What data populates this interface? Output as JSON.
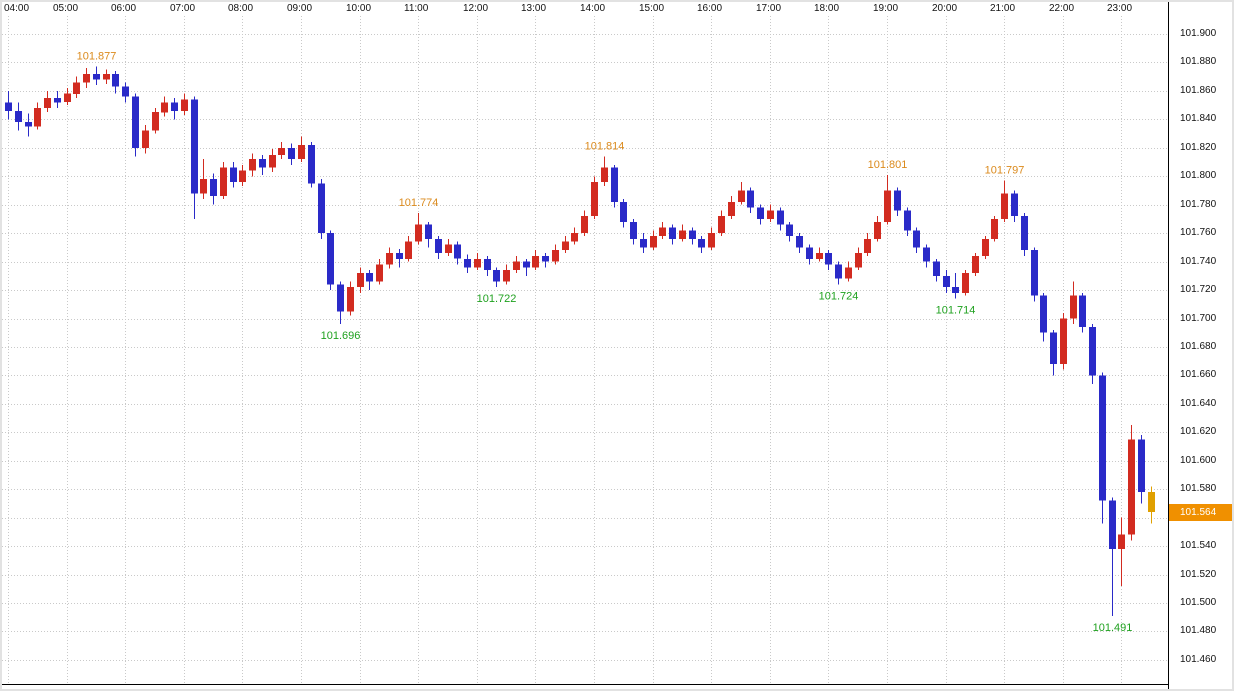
{
  "axis": {
    "time_labels": [
      "04:00",
      "05:00",
      "06:00",
      "07:00",
      "08:00",
      "09:00",
      "10:00",
      "11:00",
      "12:00",
      "13:00",
      "14:00",
      "15:00",
      "16:00",
      "17:00",
      "18:00",
      "19:00",
      "20:00",
      "21:00",
      "22:00",
      "23:00"
    ],
    "price_labels": [
      "101.900",
      "101.880",
      "101.860",
      "101.840",
      "101.820",
      "101.800",
      "101.780",
      "101.760",
      "101.740",
      "101.720",
      "101.700",
      "101.680",
      "101.660",
      "101.640",
      "101.620",
      "101.600",
      "101.580",
      "101.560",
      "101.540",
      "101.520",
      "101.500",
      "101.480",
      "101.460"
    ]
  },
  "current_price": {
    "value": "101.564"
  },
  "colors": {
    "up_candle": "#d22b20",
    "down_candle": "#2a2ac8",
    "current_candle": "#e0a000",
    "grid": "#c9c9c9",
    "high_label": "#db8a1c",
    "low_label": "#1fa11f",
    "current_badge_bg": "#f09000",
    "axis_text": "#111111",
    "frame_line": "#000000",
    "background": "#ffffff"
  },
  "chart_data": {
    "type": "candlestick",
    "interval_minutes": 10,
    "x_axis": {
      "start": "04:00",
      "end": "23:30",
      "tick_labels": [
        "04:00",
        "05:00",
        "06:00",
        "07:00",
        "08:00",
        "09:00",
        "10:00",
        "11:00",
        "12:00",
        "13:00",
        "14:00",
        "15:00",
        "16:00",
        "17:00",
        "18:00",
        "19:00",
        "20:00",
        "21:00",
        "22:00",
        "23:00"
      ]
    },
    "y_axis": {
      "min": 101.46,
      "max": 101.9,
      "step": 0.02,
      "grid": true
    },
    "annotations": [
      {
        "text": "101.877",
        "kind": "high",
        "time": "05:30"
      },
      {
        "text": "101.696",
        "kind": "low",
        "time": "09:40"
      },
      {
        "text": "101.774",
        "kind": "high",
        "time": "11:00"
      },
      {
        "text": "101.722",
        "kind": "low",
        "time": "12:20"
      },
      {
        "text": "101.814",
        "kind": "high",
        "time": "14:10"
      },
      {
        "text": "101.724",
        "kind": "low",
        "time": "18:10"
      },
      {
        "text": "101.801",
        "kind": "high",
        "time": "19:00"
      },
      {
        "text": "101.714",
        "kind": "low",
        "time": "20:10"
      },
      {
        "text": "101.797",
        "kind": "high",
        "time": "21:00"
      },
      {
        "text": "101.491",
        "kind": "low",
        "time": "22:50"
      }
    ],
    "candles": [
      [
        "04:00",
        101.852,
        101.86,
        101.84,
        101.846
      ],
      [
        "04:10",
        101.846,
        101.852,
        101.832,
        101.838
      ],
      [
        "04:20",
        101.838,
        101.844,
        101.828,
        101.835
      ],
      [
        "04:30",
        101.835,
        101.852,
        101.833,
        101.848
      ],
      [
        "04:40",
        101.848,
        101.86,
        101.845,
        101.855
      ],
      [
        "04:50",
        101.855,
        101.86,
        101.848,
        101.852
      ],
      [
        "05:00",
        101.852,
        101.862,
        101.85,
        101.858
      ],
      [
        "05:10",
        101.858,
        101.87,
        101.855,
        101.866
      ],
      [
        "05:20",
        101.866,
        101.876,
        101.862,
        101.872
      ],
      [
        "05:30",
        101.872,
        101.877,
        101.864,
        101.868
      ],
      [
        "05:40",
        101.868,
        101.875,
        101.865,
        101.872
      ],
      [
        "05:50",
        101.872,
        101.874,
        101.858,
        101.863
      ],
      [
        "06:00",
        101.863,
        101.866,
        101.852,
        101.856
      ],
      [
        "06:10",
        101.856,
        101.858,
        101.814,
        101.82
      ],
      [
        "06:20",
        101.82,
        101.836,
        101.816,
        101.832
      ],
      [
        "06:30",
        101.832,
        101.848,
        101.83,
        101.845
      ],
      [
        "06:40",
        101.845,
        101.856,
        101.842,
        101.852
      ],
      [
        "06:50",
        101.852,
        101.855,
        101.84,
        101.846
      ],
      [
        "07:00",
        101.846,
        101.858,
        101.843,
        101.854
      ],
      [
        "07:10",
        101.854,
        101.856,
        101.77,
        101.788
      ],
      [
        "07:20",
        101.788,
        101.812,
        101.784,
        101.798
      ],
      [
        "07:30",
        101.798,
        101.802,
        101.78,
        101.786
      ],
      [
        "07:40",
        101.786,
        101.81,
        101.784,
        101.806
      ],
      [
        "07:50",
        101.806,
        101.81,
        101.792,
        101.796
      ],
      [
        "08:00",
        101.796,
        101.808,
        101.793,
        101.804
      ],
      [
        "08:10",
        101.804,
        101.816,
        101.8,
        101.812
      ],
      [
        "08:20",
        101.812,
        101.815,
        101.801,
        101.806
      ],
      [
        "08:30",
        101.806,
        101.819,
        101.803,
        101.815
      ],
      [
        "08:40",
        101.815,
        101.824,
        101.812,
        101.82
      ],
      [
        "08:50",
        101.82,
        101.823,
        101.808,
        101.812
      ],
      [
        "09:00",
        101.812,
        101.828,
        101.81,
        101.822
      ],
      [
        "09:10",
        101.822,
        101.824,
        101.792,
        101.795
      ],
      [
        "09:20",
        101.795,
        101.798,
        101.756,
        101.76
      ],
      [
        "09:30",
        101.76,
        101.762,
        101.72,
        101.724
      ],
      [
        "09:40",
        101.724,
        101.726,
        101.696,
        101.705
      ],
      [
        "09:50",
        101.705,
        101.726,
        101.702,
        101.722
      ],
      [
        "10:00",
        101.722,
        101.736,
        101.718,
        101.732
      ],
      [
        "10:10",
        101.732,
        101.734,
        101.72,
        101.726
      ],
      [
        "10:20",
        101.726,
        101.742,
        101.724,
        101.738
      ],
      [
        "10:30",
        101.738,
        101.75,
        101.735,
        101.746
      ],
      [
        "10:40",
        101.746,
        101.749,
        101.736,
        101.742
      ],
      [
        "10:50",
        101.742,
        101.758,
        101.74,
        101.754
      ],
      [
        "11:00",
        101.754,
        101.774,
        101.752,
        101.766
      ],
      [
        "11:10",
        101.766,
        101.768,
        101.75,
        101.756
      ],
      [
        "11:20",
        101.756,
        101.758,
        101.742,
        101.746
      ],
      [
        "11:30",
        101.746,
        101.756,
        101.744,
        101.752
      ],
      [
        "11:40",
        101.752,
        101.754,
        101.738,
        101.742
      ],
      [
        "11:50",
        101.742,
        101.745,
        101.732,
        101.736
      ],
      [
        "12:00",
        101.736,
        101.746,
        101.734,
        101.742
      ],
      [
        "12:10",
        101.742,
        101.744,
        101.73,
        101.734
      ],
      [
        "12:20",
        101.734,
        101.736,
        101.722,
        101.726
      ],
      [
        "12:30",
        101.726,
        101.738,
        101.724,
        101.734
      ],
      [
        "12:40",
        101.734,
        101.744,
        101.732,
        101.74
      ],
      [
        "12:50",
        101.74,
        101.742,
        101.73,
        101.736
      ],
      [
        "13:00",
        101.736,
        101.748,
        101.734,
        101.744
      ],
      [
        "13:10",
        101.744,
        101.746,
        101.736,
        101.74
      ],
      [
        "13:20",
        101.74,
        101.752,
        101.738,
        101.748
      ],
      [
        "13:30",
        101.748,
        101.758,
        101.746,
        101.754
      ],
      [
        "13:40",
        101.754,
        101.764,
        101.752,
        101.76
      ],
      [
        "13:50",
        101.76,
        101.776,
        101.758,
        101.772
      ],
      [
        "14:00",
        101.772,
        101.8,
        101.77,
        101.796
      ],
      [
        "14:10",
        101.796,
        101.814,
        101.793,
        101.806
      ],
      [
        "14:20",
        101.806,
        101.808,
        101.778,
        101.782
      ],
      [
        "14:30",
        101.782,
        101.784,
        101.764,
        101.768
      ],
      [
        "14:40",
        101.768,
        101.77,
        101.752,
        101.756
      ],
      [
        "14:50",
        101.756,
        101.76,
        101.746,
        101.75
      ],
      [
        "15:00",
        101.75,
        101.762,
        101.748,
        101.758
      ],
      [
        "15:10",
        101.758,
        101.768,
        101.756,
        101.764
      ],
      [
        "15:20",
        101.764,
        101.766,
        101.752,
        101.756
      ],
      [
        "15:30",
        101.756,
        101.766,
        101.754,
        101.762
      ],
      [
        "15:40",
        101.762,
        101.764,
        101.752,
        101.756
      ],
      [
        "15:50",
        101.756,
        101.758,
        101.746,
        101.75
      ],
      [
        "16:00",
        101.75,
        101.764,
        101.748,
        101.76
      ],
      [
        "16:10",
        101.76,
        101.776,
        101.758,
        101.772
      ],
      [
        "16:20",
        101.772,
        101.786,
        101.77,
        101.782
      ],
      [
        "16:30",
        101.782,
        101.796,
        101.78,
        101.79
      ],
      [
        "16:40",
        101.79,
        101.792,
        101.774,
        101.778
      ],
      [
        "16:50",
        101.778,
        101.78,
        101.766,
        101.77
      ],
      [
        "17:00",
        101.77,
        101.78,
        101.768,
        101.776
      ],
      [
        "17:10",
        101.776,
        101.778,
        101.762,
        101.766
      ],
      [
        "17:20",
        101.766,
        101.768,
        101.754,
        101.758
      ],
      [
        "17:30",
        101.758,
        101.76,
        101.746,
        101.75
      ],
      [
        "17:40",
        101.75,
        101.752,
        101.738,
        101.742
      ],
      [
        "17:50",
        101.742,
        101.75,
        101.74,
        101.746
      ],
      [
        "18:00",
        101.746,
        101.748,
        101.734,
        101.738
      ],
      [
        "18:10",
        101.738,
        101.74,
        101.724,
        101.728
      ],
      [
        "18:20",
        101.728,
        101.74,
        101.726,
        101.736
      ],
      [
        "18:30",
        101.736,
        101.75,
        101.734,
        101.746
      ],
      [
        "18:40",
        101.746,
        101.76,
        101.744,
        101.756
      ],
      [
        "18:50",
        101.756,
        101.772,
        101.754,
        101.768
      ],
      [
        "19:00",
        101.768,
        101.801,
        101.766,
        101.79
      ],
      [
        "19:10",
        101.79,
        101.792,
        101.772,
        101.776
      ],
      [
        "19:20",
        101.776,
        101.778,
        101.758,
        101.762
      ],
      [
        "19:30",
        101.762,
        101.764,
        101.746,
        101.75
      ],
      [
        "19:40",
        101.75,
        101.752,
        101.736,
        101.74
      ],
      [
        "19:50",
        101.74,
        101.742,
        101.726,
        101.73
      ],
      [
        "20:00",
        101.73,
        101.734,
        101.718,
        101.722
      ],
      [
        "20:10",
        101.722,
        101.732,
        101.714,
        101.718
      ],
      [
        "20:20",
        101.718,
        101.734,
        101.716,
        101.732
      ],
      [
        "20:30",
        101.732,
        101.746,
        101.73,
        101.744
      ],
      [
        "20:40",
        101.744,
        101.758,
        101.742,
        101.756
      ],
      [
        "20:50",
        101.756,
        101.772,
        101.754,
        101.77
      ],
      [
        "21:00",
        101.77,
        101.797,
        101.768,
        101.788
      ],
      [
        "21:10",
        101.788,
        101.79,
        101.768,
        101.772
      ],
      [
        "21:20",
        101.772,
        101.774,
        101.744,
        101.748
      ],
      [
        "21:30",
        101.748,
        101.75,
        101.712,
        101.716
      ],
      [
        "21:40",
        101.716,
        101.718,
        101.684,
        101.69
      ],
      [
        "21:50",
        101.69,
        101.692,
        101.66,
        101.668
      ],
      [
        "22:00",
        101.668,
        101.704,
        101.664,
        101.7
      ],
      [
        "22:10",
        101.7,
        101.726,
        101.696,
        101.716
      ],
      [
        "22:20",
        101.716,
        101.718,
        101.69,
        101.694
      ],
      [
        "22:30",
        101.694,
        101.696,
        101.654,
        101.66
      ],
      [
        "22:40",
        101.66,
        101.662,
        101.556,
        101.572
      ],
      [
        "22:50",
        101.572,
        101.574,
        101.491,
        101.538
      ],
      [
        "23:00",
        101.538,
        101.56,
        101.512,
        101.548
      ],
      [
        "23:10",
        101.548,
        101.625,
        101.544,
        101.615
      ],
      [
        "23:20",
        101.615,
        101.618,
        101.57,
        101.578
      ],
      [
        "23:30",
        101.578,
        101.582,
        101.556,
        101.564
      ]
    ]
  }
}
